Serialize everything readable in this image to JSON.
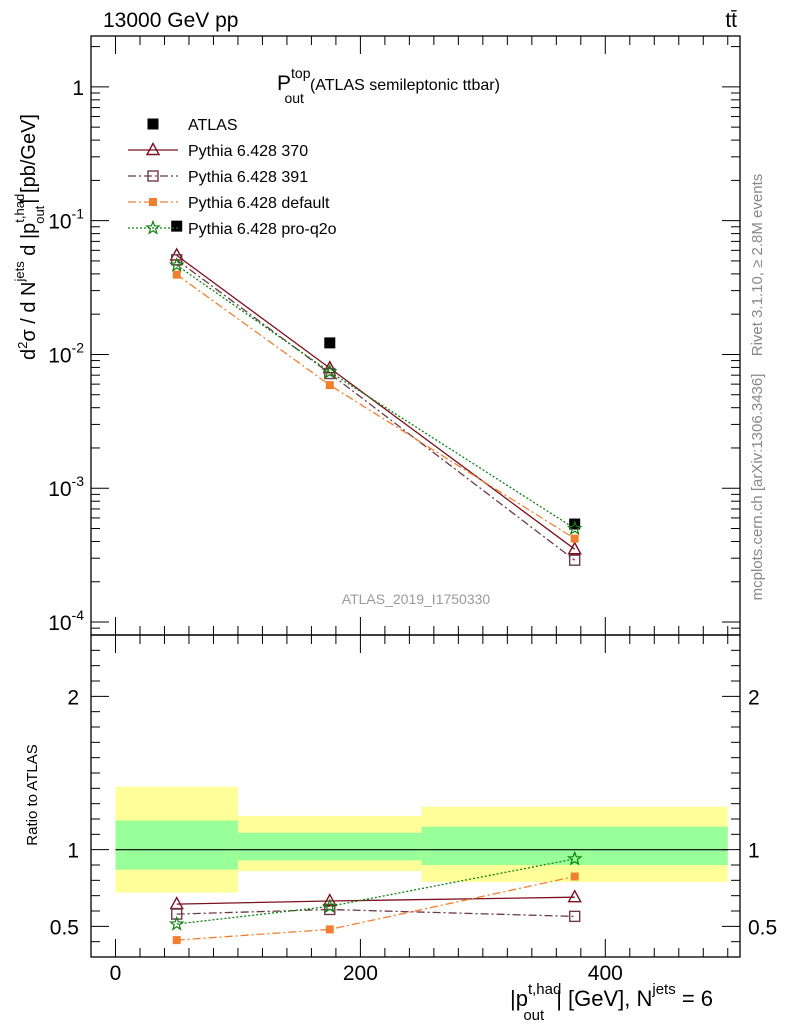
{
  "header": {
    "energy": "13000 GeV pp",
    "process": "tt̄"
  },
  "side_labels": {
    "rivet": "Rivet 3.1.10, ≥ 2.8M events",
    "mcplots": "mcplots.cern.ch [arXiv:1306.3436]"
  },
  "chart_data": [
    {
      "type": "scatter",
      "panel": "main",
      "title_main": "P",
      "title_sup": "top",
      "title_sub": "out",
      "title_rest": "(ATLAS semileptonic ttbar)",
      "analysis_label": "ATLAS_2019_I1750330",
      "ylabel": "d²σ / d N^jets d |p_out^t,had| [pb/GeV]",
      "yscale": "log",
      "ylim": [
        8e-05,
        2.4
      ],
      "xlim": [
        -20,
        510
      ],
      "y_ticks": [
        {
          "value": 1,
          "base": "1",
          "exp": ""
        },
        {
          "value": 0.1,
          "base": "10",
          "exp": "-1"
        },
        {
          "value": 0.01,
          "base": "10",
          "exp": "-2"
        },
        {
          "value": 0.001,
          "base": "10",
          "exp": "-3"
        },
        {
          "value": 0.0001,
          "base": "10",
          "exp": "-4"
        }
      ],
      "legend_position": "top-left",
      "x": [
        50,
        175,
        375
      ],
      "series": [
        {
          "name": "ATLAS",
          "values": [
            0.091,
            0.0122,
            0.00054
          ],
          "color": "#000000",
          "marker": "filled-square",
          "line": "none"
        },
        {
          "name": "Pythia 6.428 370",
          "values": [
            0.055,
            0.0079,
            0.00035
          ],
          "color": "#7b1020",
          "marker": "open-triangle",
          "line": "solid"
        },
        {
          "name": "Pythia 6.428 391",
          "values": [
            0.051,
            0.0072,
            0.00029
          ],
          "color": "#6b3a4a",
          "marker": "open-square",
          "line": "dashdot"
        },
        {
          "name": "Pythia 6.428 default",
          "values": [
            0.0395,
            0.0059,
            0.00042
          ],
          "color": "#f08030",
          "marker": "filled-square-small",
          "line": "dashdot"
        },
        {
          "name": "Pythia 6.428 pro-q2o",
          "values": [
            0.0465,
            0.0074,
            0.0005
          ],
          "color": "#108010",
          "marker": "star",
          "line": "dotted"
        }
      ]
    },
    {
      "type": "scatter",
      "panel": "ratio",
      "ylabel": "Ratio to ATLAS",
      "xlabel_main": "|p",
      "xlabel_sup": "t,had",
      "xlabel_sub": "out",
      "xlabel_rest": "| [GeV], N",
      "xlabel_sup2": "jets",
      "xlabel_end": " = 6",
      "ylim": [
        0.3,
        2.4
      ],
      "xlim": [
        -20,
        510
      ],
      "x_ticks": [
        "0",
        "200",
        "400"
      ],
      "y_ticks": [
        "0.5",
        "1",
        "2"
      ],
      "bands": [
        {
          "x0": 0,
          "x1": 100,
          "yellow": [
            0.72,
            1.41
          ],
          "green": [
            0.87,
            1.19
          ]
        },
        {
          "x0": 100,
          "x1": 250,
          "yellow": [
            0.86,
            1.22
          ],
          "green": [
            0.93,
            1.11
          ]
        },
        {
          "x0": 250,
          "x1": 500,
          "yellow": [
            0.79,
            1.28
          ],
          "green": [
            0.9,
            1.15
          ]
        }
      ],
      "x": [
        50,
        175,
        375
      ],
      "series": [
        {
          "name": "Pythia 6.428 370",
          "values": [
            0.645,
            0.665,
            0.69
          ],
          "color": "#7b1020",
          "marker": "open-triangle",
          "line": "solid"
        },
        {
          "name": "Pythia 6.428 391",
          "values": [
            0.58,
            0.61,
            0.565
          ],
          "color": "#6b3a4a",
          "marker": "open-square",
          "line": "dashdot"
        },
        {
          "name": "Pythia 6.428 default",
          "values": [
            0.41,
            0.48,
            0.825
          ],
          "color": "#f08030",
          "marker": "filled-square-small",
          "line": "dashdot"
        },
        {
          "name": "Pythia 6.428 pro-q2o",
          "values": [
            0.515,
            0.63,
            0.94
          ],
          "color": "#108010",
          "marker": "star",
          "line": "dotted"
        }
      ]
    }
  ]
}
